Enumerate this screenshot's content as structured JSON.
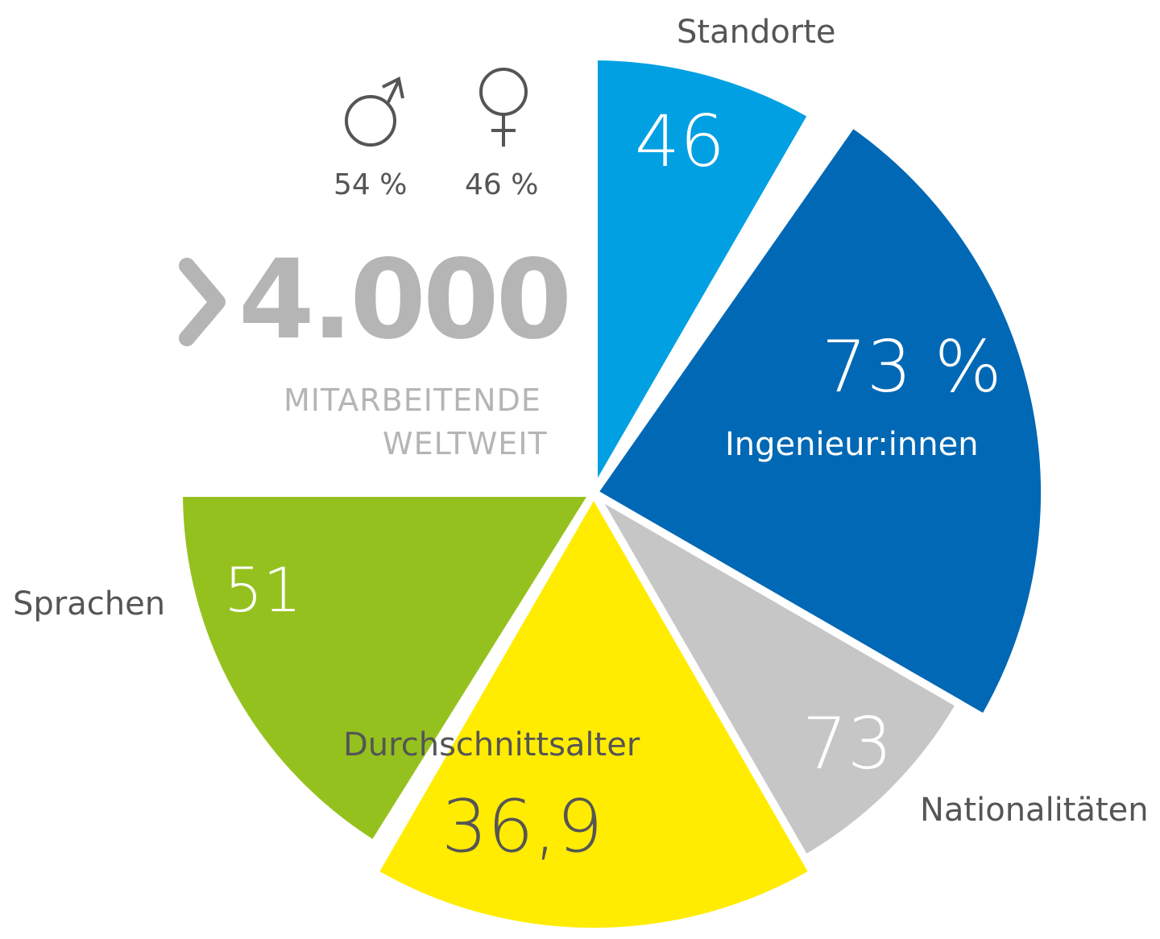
{
  "chart_data": {
    "type": "pie",
    "slices": [
      {
        "label": "Standorte",
        "value_text": "46",
        "value": 46,
        "color": "#00a0e3"
      },
      {
        "label": "Ingenieur:innen",
        "value_text": "73 %",
        "value": 73,
        "color": "#0068b4"
      },
      {
        "label": "Nationalitäten",
        "value_text": "73",
        "value": 73,
        "color": "#c6c6c6"
      },
      {
        "label": "Durchschnittsalter",
        "value_text": "36,9",
        "value": 36.9,
        "color": "#ffec00"
      },
      {
        "label": "Sprachen",
        "value_text": "51",
        "value": 51,
        "color": "#95c11f"
      }
    ]
  },
  "headline": {
    "value": "4.000",
    "line1": "MITARBEITENDE",
    "line2": "WELTWEIT"
  },
  "gender": {
    "male": {
      "icon": "male-symbol-icon",
      "share": "54 %"
    },
    "female": {
      "icon": "female-symbol-icon",
      "share": "46 %"
    }
  },
  "colors": {
    "text": "#555555",
    "headline": "#b5b5b5"
  }
}
